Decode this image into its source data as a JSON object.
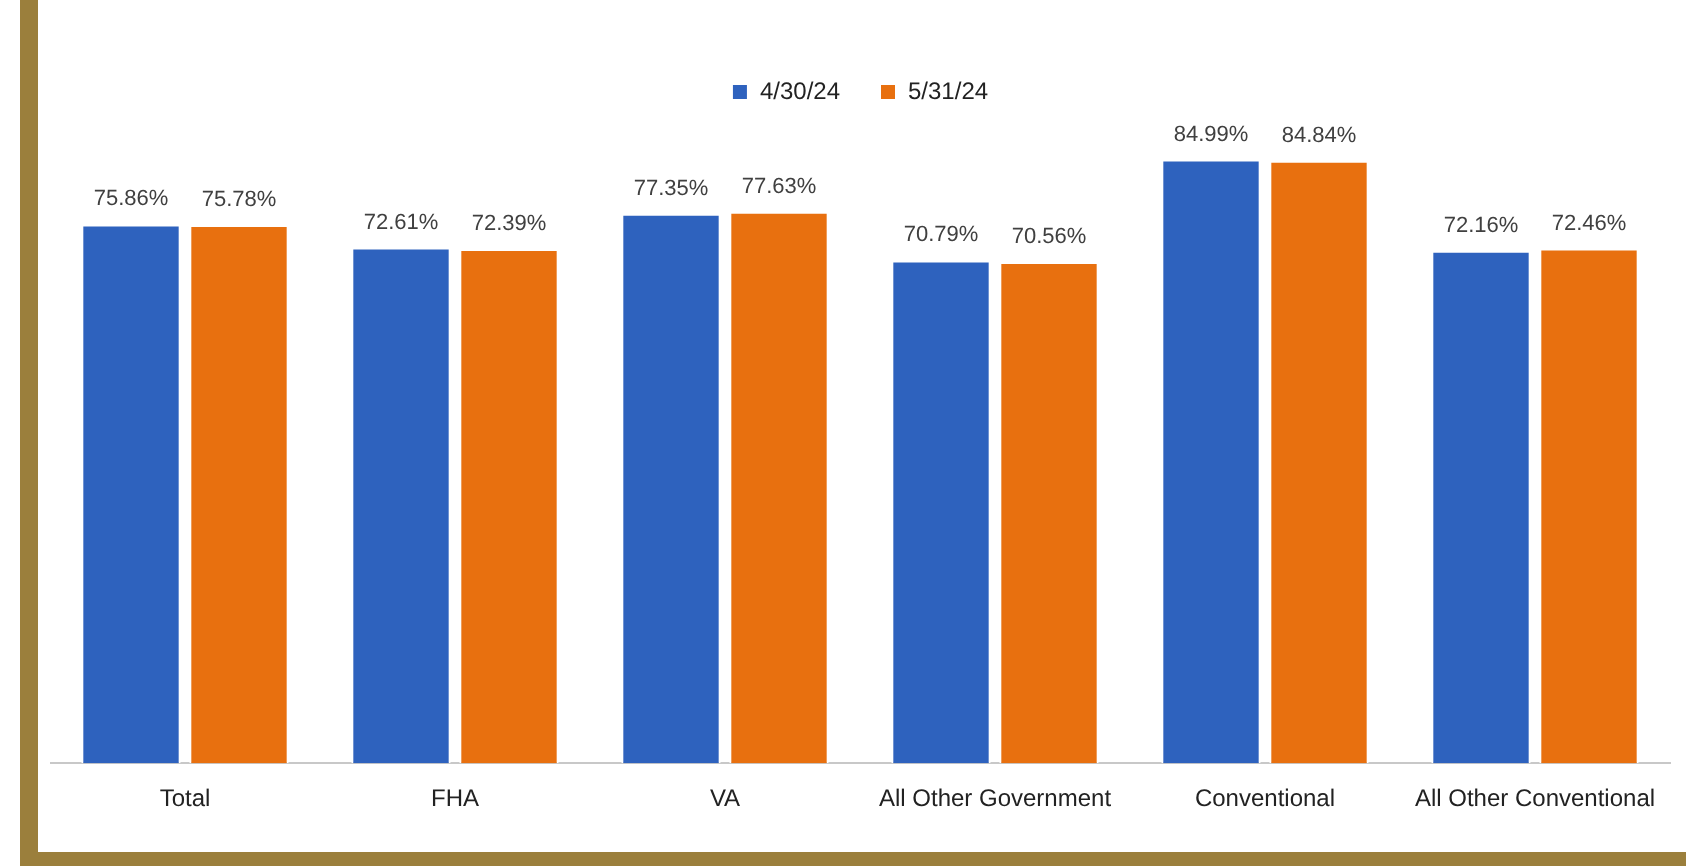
{
  "chart_data": {
    "type": "bar",
    "categories": [
      "Total",
      "FHA",
      "VA",
      "All Other Government",
      "Conventional",
      "All Other Conventional"
    ],
    "series": [
      {
        "name": "4/30/24",
        "color": "#2e62be",
        "values": [
          75.86,
          72.61,
          77.35,
          70.79,
          84.99,
          72.16
        ],
        "value_labels": [
          "75.86%",
          "72.61%",
          "77.35%",
          "70.79%",
          "84.99%",
          "72.16%"
        ]
      },
      {
        "name": "5/31/24",
        "color": "#e8700f",
        "values": [
          75.78,
          72.39,
          77.63,
          70.56,
          84.84,
          72.46
        ],
        "value_labels": [
          "75.78%",
          "72.39%",
          "77.63%",
          "70.56%",
          "84.84%",
          "72.46%"
        ]
      }
    ],
    "tick_labels": "x",
    "grid": false,
    "legend": "top"
  }
}
